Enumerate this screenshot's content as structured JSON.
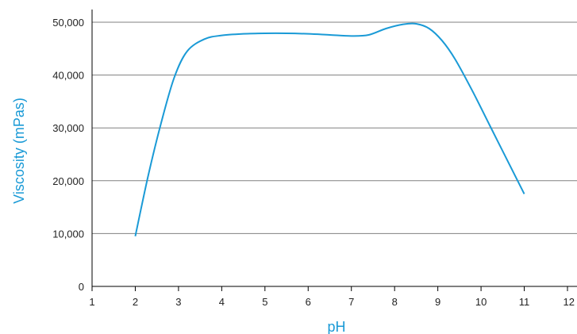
{
  "chart_data": {
    "type": "line",
    "xlabel": "pH",
    "ylabel": "Viscosity (mPas)",
    "xlim": [
      1,
      12
    ],
    "ylim": [
      0,
      50000
    ],
    "x_ticks": [
      1,
      2,
      3,
      4,
      5,
      6,
      7,
      8,
      9,
      10,
      11,
      12
    ],
    "x_tick_labels": [
      "1",
      "2",
      "3",
      "4",
      "5",
      "6",
      "7",
      "8",
      "9",
      "10",
      "11",
      "12"
    ],
    "y_ticks": [
      0,
      10000,
      20000,
      30000,
      40000,
      50000
    ],
    "y_tick_labels": [
      "0",
      "10,000",
      "20,000",
      "30,000",
      "40,000",
      "50,000"
    ],
    "grid": "horizontal",
    "series": [
      {
        "color": "#1a9ad6",
        "x": [
          2.0,
          2.3,
          2.6,
          2.9,
          3.2,
          3.6,
          4.0,
          4.5,
          5.0,
          5.5,
          6.0,
          6.5,
          7.0,
          7.4,
          7.8,
          8.2,
          8.5,
          8.8,
          9.1,
          9.4,
          9.8,
          10.2,
          10.6,
          11.0
        ],
        "y": [
          9500,
          21000,
          31000,
          39500,
          44500,
          46800,
          47500,
          47800,
          47900,
          47900,
          47800,
          47600,
          47400,
          47600,
          48800,
          49600,
          49700,
          48800,
          46500,
          43000,
          37000,
          30500,
          24000,
          17500
        ]
      }
    ]
  },
  "colors": {
    "line": "#1a9ad6",
    "axis_title": "#1a9ad6",
    "gridline": "#808080",
    "axis": "#000000",
    "tick_text": "#222222"
  }
}
